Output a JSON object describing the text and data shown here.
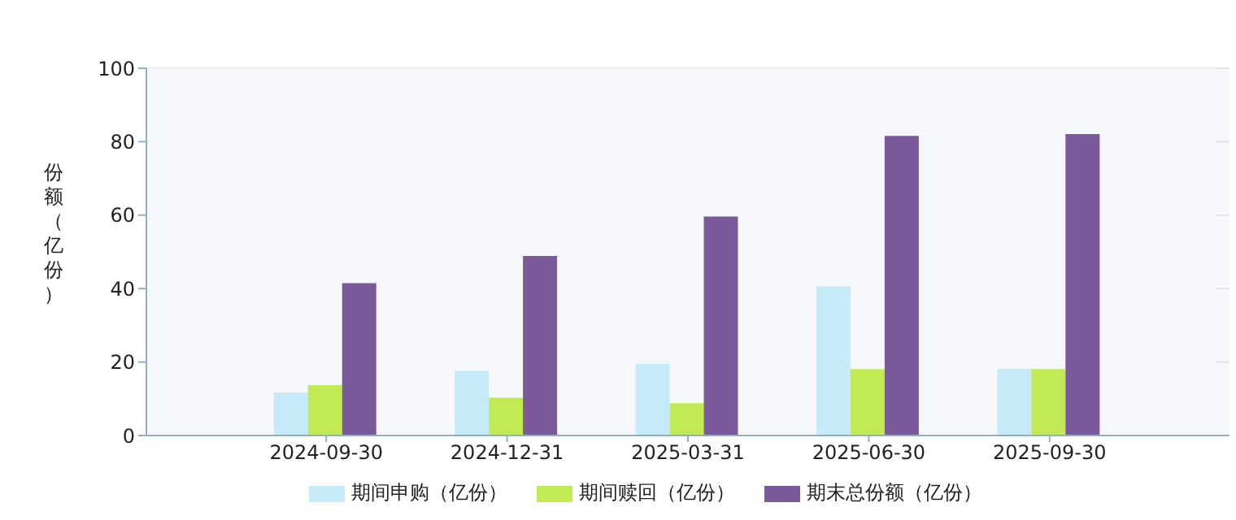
{
  "chart_data": {
    "type": "bar",
    "ylabel": "份额（亿份）",
    "categories": [
      "2024-09-30",
      "2024-12-31",
      "2025-03-31",
      "2025-06-30",
      "2025-09-30"
    ],
    "series": [
      {
        "name": "期间申购（亿份）",
        "color": "#c4ebf7",
        "values": [
          11.7,
          17.6,
          19.5,
          40.6,
          18.1
        ]
      },
      {
        "name": "期间赎回（亿份）",
        "color": "#c2ea55",
        "values": [
          13.7,
          10.3,
          8.8,
          18.1,
          18.1
        ]
      },
      {
        "name": "期末总份额（亿份）",
        "color": "#7a5a9a",
        "values": [
          41.5,
          48.9,
          59.6,
          81.6,
          82.1
        ]
      }
    ],
    "ylim": [
      0,
      100
    ],
    "yticks": [
      0,
      20,
      40,
      60,
      80,
      100
    ],
    "grid": "y",
    "legend": "bottom"
  }
}
